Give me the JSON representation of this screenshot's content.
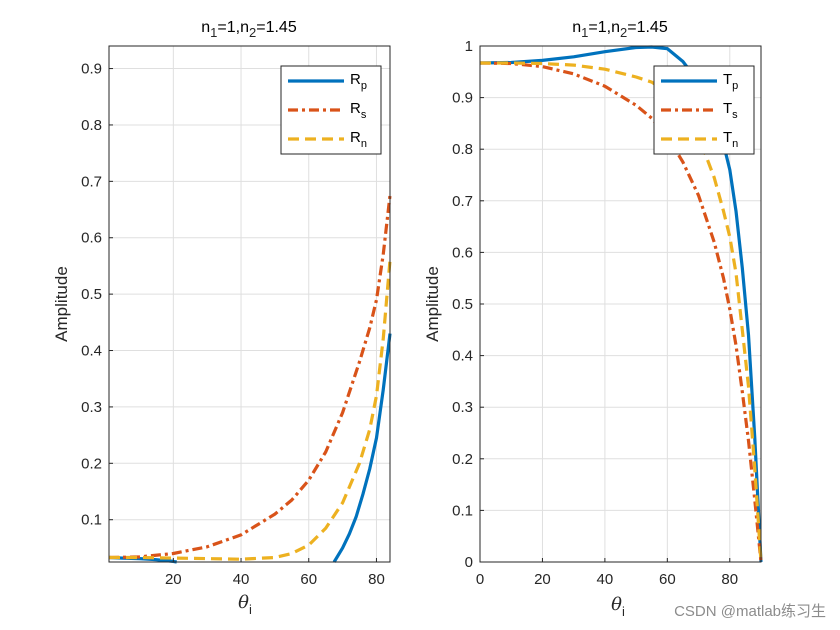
{
  "colors": {
    "p": "#0072BD",
    "s": "#D95319",
    "n": "#EDB120"
  },
  "watermark": "CSDN @matlab练习生",
  "chart_data": [
    {
      "type": "line",
      "title": {
        "main1": "n",
        "sub1": "1",
        "main2": "=1,n",
        "sub2": "2",
        "main3": "=1.45"
      },
      "ylabel": "Amplitude",
      "xlabel": {
        "symbol": "θ",
        "sub": "i"
      },
      "xlim": [
        1,
        84
      ],
      "ylim": [
        0.025,
        0.94
      ],
      "xticks": [
        20,
        40,
        60,
        80
      ],
      "yticks": [
        0.1,
        0.2,
        0.3,
        0.4,
        0.5,
        0.6,
        0.7,
        0.8,
        0.9
      ],
      "ytick_labels": [
        "0.1",
        "0.2",
        "0.3",
        "0.4",
        "0.5",
        "0.6",
        "0.7",
        "0.8",
        "0.9"
      ],
      "legend": [
        {
          "main": "R",
          "sub": "p",
          "key": "p",
          "dash": "solid"
        },
        {
          "main": "R",
          "sub": "s",
          "key": "s",
          "dash": "dashdot"
        },
        {
          "main": "R",
          "sub": "n",
          "key": "n",
          "dash": "dashed"
        }
      ],
      "series": [
        {
          "name": "Rp",
          "key": "p",
          "style": "solid",
          "points": [
            [
              1,
              0.033
            ],
            [
              5,
              0.032
            ],
            [
              10,
              0.031
            ],
            [
              15,
              0.029
            ],
            [
              20,
              0.026
            ],
            [
              21,
              0.025
            ]
          ]
        },
        {
          "name": "Rp",
          "key": "p",
          "style": "solid",
          "points": [
            [
              67.5,
              0.025
            ],
            [
              70,
              0.05
            ],
            [
              72,
              0.075
            ],
            [
              74,
              0.105
            ],
            [
              76,
              0.145
            ],
            [
              78,
              0.19
            ],
            [
              80,
              0.245
            ],
            [
              82,
              0.33
            ],
            [
              84,
              0.43
            ]
          ]
        },
        {
          "name": "Rs",
          "key": "s",
          "style": "dashdot",
          "points": [
            [
              1,
              0.033
            ],
            [
              10,
              0.034
            ],
            [
              20,
              0.04
            ],
            [
              30,
              0.052
            ],
            [
              40,
              0.073
            ],
            [
              50,
              0.11
            ],
            [
              55,
              0.135
            ],
            [
              60,
              0.17
            ],
            [
              65,
              0.22
            ],
            [
              70,
              0.29
            ],
            [
              75,
              0.38
            ],
            [
              78,
              0.44
            ],
            [
              80,
              0.49
            ],
            [
              82,
              0.57
            ],
            [
              84,
              0.675
            ]
          ]
        },
        {
          "name": "Rn",
          "key": "n",
          "style": "dashed",
          "points": [
            [
              1,
              0.033
            ],
            [
              10,
              0.033
            ],
            [
              20,
              0.032
            ],
            [
              30,
              0.031
            ],
            [
              40,
              0.03
            ],
            [
              50,
              0.033
            ],
            [
              55,
              0.04
            ],
            [
              60,
              0.055
            ],
            [
              65,
              0.085
            ],
            [
              70,
              0.13
            ],
            [
              75,
              0.2
            ],
            [
              78,
              0.26
            ],
            [
              80,
              0.32
            ],
            [
              82,
              0.42
            ],
            [
              84,
              0.56
            ]
          ]
        }
      ]
    },
    {
      "type": "line",
      "title": {
        "main1": "n",
        "sub1": "1",
        "main2": "=1,n",
        "sub2": "2",
        "main3": "=1.45"
      },
      "ylabel": "Amplitude",
      "xlabel": {
        "symbol": "θ",
        "sub": "i"
      },
      "xlim": [
        0,
        90
      ],
      "ylim": [
        0,
        1
      ],
      "xticks": [
        0,
        20,
        40,
        60,
        80
      ],
      "yticks": [
        0,
        0.1,
        0.2,
        0.3,
        0.4,
        0.5,
        0.6,
        0.7,
        0.8,
        0.9,
        1
      ],
      "ytick_labels": [
        "0",
        "0.1",
        "0.2",
        "0.3",
        "0.4",
        "0.5",
        "0.6",
        "0.7",
        "0.8",
        "0.9",
        "1"
      ],
      "legend": [
        {
          "main": "T",
          "sub": "p",
          "key": "p",
          "dash": "solid"
        },
        {
          "main": "T",
          "sub": "s",
          "key": "s",
          "dash": "dashdot"
        },
        {
          "main": "T",
          "sub": "n",
          "key": "n",
          "dash": "dashed"
        }
      ],
      "series": [
        {
          "name": "Tp",
          "key": "p",
          "style": "solid",
          "points": [
            [
              0,
              0.967
            ],
            [
              10,
              0.968
            ],
            [
              20,
              0.972
            ],
            [
              30,
              0.979
            ],
            [
              40,
              0.989
            ],
            [
              50,
              0.997
            ],
            [
              55,
              0.998
            ],
            [
              60,
              0.995
            ],
            [
              65,
              0.97
            ],
            [
              70,
              0.93
            ],
            [
              75,
              0.87
            ],
            [
              78,
              0.81
            ],
            [
              80,
              0.76
            ],
            [
              82,
              0.68
            ],
            [
              84,
              0.57
            ],
            [
              86,
              0.44
            ],
            [
              88,
              0.24
            ],
            [
              89,
              0.12
            ],
            [
              90,
              0
            ]
          ]
        },
        {
          "name": "Ts",
          "key": "s",
          "style": "dashdot",
          "points": [
            [
              0,
              0.967
            ],
            [
              10,
              0.966
            ],
            [
              20,
              0.96
            ],
            [
              30,
              0.946
            ],
            [
              40,
              0.922
            ],
            [
              50,
              0.885
            ],
            [
              55,
              0.86
            ],
            [
              60,
              0.825
            ],
            [
              65,
              0.775
            ],
            [
              70,
              0.71
            ],
            [
              75,
              0.62
            ],
            [
              78,
              0.55
            ],
            [
              80,
              0.49
            ],
            [
              82,
              0.42
            ],
            [
              84,
              0.33
            ],
            [
              86,
              0.235
            ],
            [
              88,
              0.12
            ],
            [
              89,
              0.06
            ],
            [
              90,
              0
            ]
          ]
        },
        {
          "name": "Tn",
          "key": "n",
          "style": "dashed",
          "points": [
            [
              0,
              0.967
            ],
            [
              10,
              0.967
            ],
            [
              20,
              0.966
            ],
            [
              30,
              0.963
            ],
            [
              40,
              0.955
            ],
            [
              50,
              0.94
            ],
            [
              55,
              0.93
            ],
            [
              60,
              0.91
            ],
            [
              65,
              0.875
            ],
            [
              70,
              0.825
            ],
            [
              75,
              0.745
            ],
            [
              78,
              0.68
            ],
            [
              80,
              0.63
            ],
            [
              82,
              0.56
            ],
            [
              84,
              0.45
            ],
            [
              86,
              0.34
            ],
            [
              88,
              0.18
            ],
            [
              89,
              0.09
            ],
            [
              90,
              0
            ]
          ]
        }
      ]
    }
  ]
}
